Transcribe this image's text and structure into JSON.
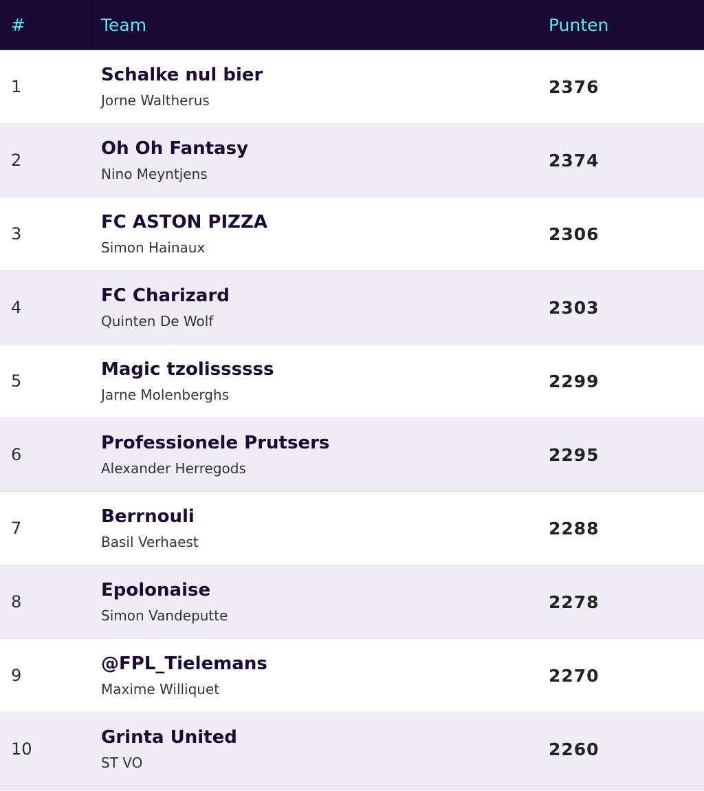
{
  "table": {
    "columns": [
      "#",
      "Team",
      "Punten"
    ],
    "rows": [
      {
        "rank": 1,
        "team": "Schalke nul bier",
        "manager": "Jorne Waltherus",
        "points": 2376
      },
      {
        "rank": 2,
        "team": "Oh Oh Fantasy",
        "manager": "Nino Meyntjens",
        "points": 2374
      },
      {
        "rank": 3,
        "team": "FC ASTON PIZZA",
        "manager": "Simon Hainaux",
        "points": 2306
      },
      {
        "rank": 4,
        "team": "FC Charizard",
        "manager": "Quinten De Wolf",
        "points": 2303
      },
      {
        "rank": 5,
        "team": "Magic tzolissssss",
        "manager": "Jarne Molenberghs",
        "points": 2299
      },
      {
        "rank": 6,
        "team": "Professionele Prutsers",
        "manager": "Alexander Herregods",
        "points": 2295
      },
      {
        "rank": 7,
        "team": "Berrnouli",
        "manager": "Basil Verhaest",
        "points": 2288
      },
      {
        "rank": 8,
        "team": "Epolonaise",
        "manager": "Simon Vandeputte",
        "points": 2278
      },
      {
        "rank": 9,
        "team": "@FPL_Tielemans",
        "manager": "Maxime Williquet",
        "points": 2270
      },
      {
        "rank": 10,
        "team": "Grinta United",
        "manager": "ST VO",
        "points": 2260
      }
    ]
  }
}
